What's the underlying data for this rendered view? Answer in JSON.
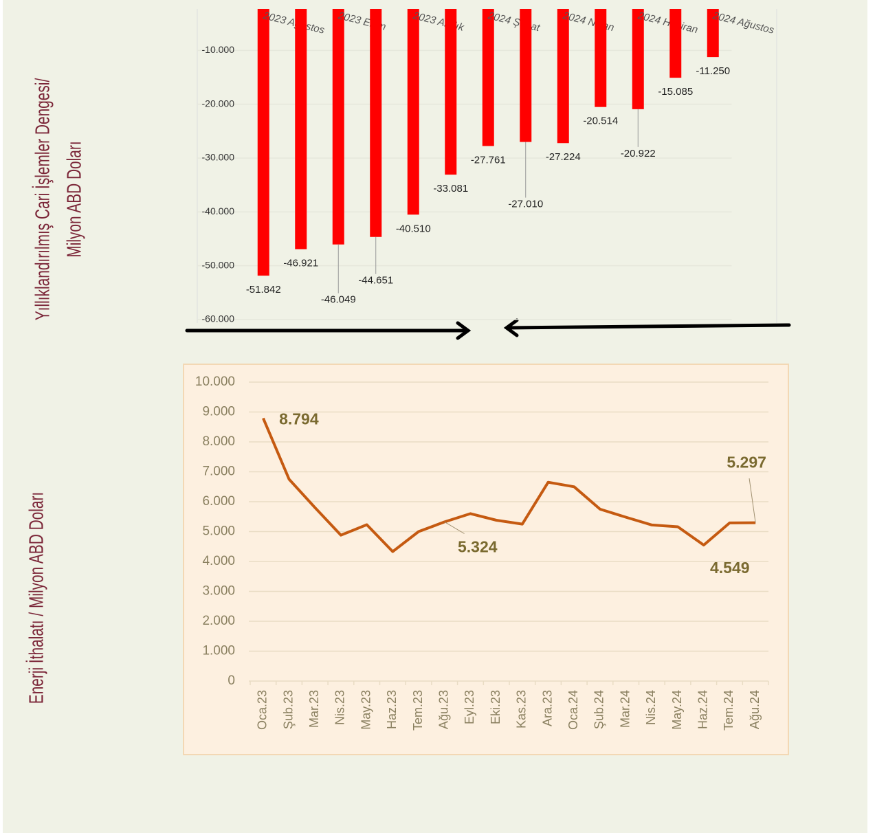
{
  "chart_data": [
    {
      "type": "bar",
      "ylabel": [
        "Yıllıklandırılmış Cari İşlemler Dengesi/",
        "Milyon ABD Doları"
      ],
      "categories": [
        "2023 Ağustos",
        null,
        "2023 Ekim",
        null,
        "2023 Aralık",
        null,
        "2024 Şubat",
        null,
        "2024 Nisan",
        null,
        "2024 Haziran",
        null,
        "2024 Ağustos"
      ],
      "values": [
        -51842,
        -46921,
        -46049,
        -44651,
        -40510,
        -33081,
        -27761,
        -27010,
        -27224,
        -20514,
        -20922,
        -15085,
        -11250
      ],
      "value_labels": [
        "-51.842",
        "-46.921",
        "-46.049",
        "-44.651",
        "-40.510",
        "-33.081",
        "-27.761",
        "-27.010",
        "-27.224",
        "-20.514",
        "-20.922",
        "-15.085",
        "-11.250"
      ],
      "color": "#ff0000",
      "ylim": [
        -60000,
        -2300
      ],
      "yticks": [
        {
          "value": -10000,
          "label": "-10.000"
        },
        {
          "value": -20000,
          "label": "-20.000"
        },
        {
          "value": -30000,
          "label": "-30.000"
        },
        {
          "value": -40000,
          "label": "-40.000"
        },
        {
          "value": -50000,
          "label": "-50.000"
        },
        {
          "value": -60000,
          "label": "-60.000"
        }
      ],
      "grid": true
    },
    {
      "type": "line",
      "ylabel": [
        "Enerji İthalatı / Milyon ABD Doları"
      ],
      "categories": [
        "Oca.23",
        "Şub.23",
        "Mar.23",
        "Nis.23",
        "May.23",
        "Haz.23",
        "Tem.23",
        "Ağu.23",
        "Eyl.23",
        "Eki.23",
        "Kas.23",
        "Ara.23",
        "Oca.24",
        "Şub.24",
        "Mar.24",
        "Nis.24",
        "May.24",
        "Haz.24",
        "Tem.24",
        "Ağu.24"
      ],
      "values": [
        8794,
        6750,
        5800,
        4880,
        5230,
        4330,
        5000,
        5324,
        5600,
        5380,
        5250,
        6650,
        6500,
        5750,
        5480,
        5220,
        5160,
        4549,
        5290,
        5297
      ],
      "value_labels": [
        "8.794",
        null,
        null,
        null,
        null,
        null,
        null,
        "5.324",
        null,
        null,
        null,
        null,
        null,
        null,
        null,
        null,
        null,
        "4.549",
        null,
        "5.297"
      ],
      "color": "#c55a11",
      "ylim": [
        0,
        10000
      ],
      "yticks": [
        0,
        {
          "value": 1000,
          "label": "1.000"
        },
        {
          "value": 2000,
          "label": "2.000"
        },
        {
          "value": 3000,
          "label": "3.000"
        },
        {
          "value": 4000,
          "label": "4.000"
        },
        {
          "value": 5000,
          "label": "5.000"
        },
        {
          "value": 6000,
          "label": "6.000"
        },
        {
          "value": 7000,
          "label": "7.000"
        },
        {
          "value": 8000,
          "label": "8.000"
        },
        {
          "value": 9000,
          "label": "9.000"
        },
        {
          "value": 10000,
          "label": "10.000"
        }
      ],
      "grid": true
    }
  ]
}
